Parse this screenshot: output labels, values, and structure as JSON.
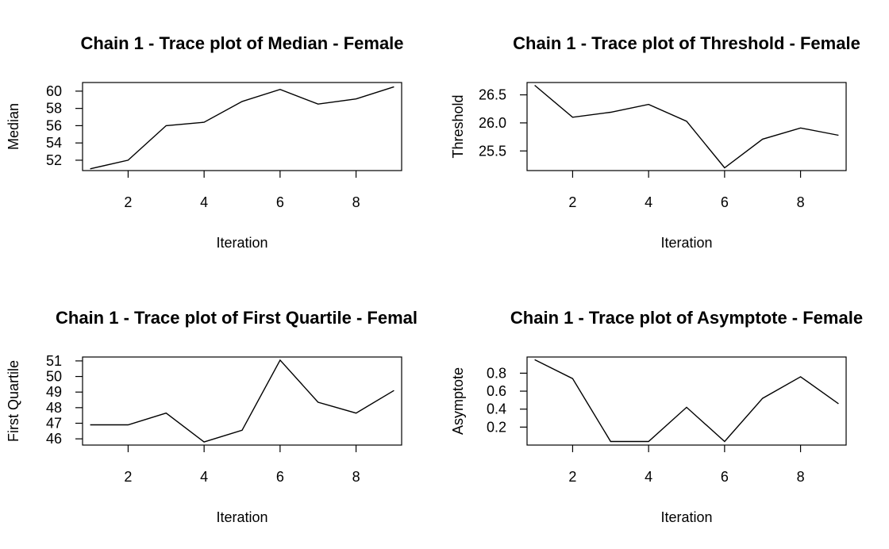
{
  "chart_data": [
    {
      "type": "line",
      "title": "Chain 1 - Trace plot of Median - Female",
      "xlabel": "Iteration",
      "ylabel": "Median",
      "x": [
        1,
        2,
        3,
        4,
        5,
        6,
        7,
        8,
        9
      ],
      "xticks": [
        2,
        4,
        6,
        8
      ],
      "xlim": [
        0.8,
        9.2
      ],
      "yticks": [
        52,
        54,
        56,
        58,
        60
      ],
      "ytick_labels": [
        "52",
        "54",
        "56",
        "58",
        "60"
      ],
      "ylim": [
        50.8,
        61.0
      ],
      "grid": false,
      "series": [
        {
          "values": [
            51.0,
            52.0,
            56.0,
            56.4,
            58.8,
            60.2,
            58.5,
            59.1,
            60.5
          ]
        }
      ]
    },
    {
      "type": "line",
      "title": "Chain 1 - Trace plot of Threshold - Female",
      "xlabel": "Iteration",
      "ylabel": "Threshold",
      "x": [
        1,
        2,
        3,
        4,
        5,
        6,
        7,
        8,
        9
      ],
      "xticks": [
        2,
        4,
        6,
        8
      ],
      "xlim": [
        0.8,
        9.2
      ],
      "yticks": [
        25.5,
        26.0,
        26.5
      ],
      "ytick_labels": [
        "25.5",
        "26.0",
        "26.5"
      ],
      "ylim": [
        25.15,
        26.72
      ],
      "grid": false,
      "series": [
        {
          "values": [
            26.67,
            26.1,
            26.19,
            26.33,
            26.03,
            25.2,
            25.71,
            25.91,
            25.78
          ]
        }
      ]
    },
    {
      "type": "line",
      "title": "Chain 1 - Trace plot of First Quartile - Femal",
      "xlabel": "Iteration",
      "ylabel": "First Quartile",
      "x": [
        1,
        2,
        3,
        4,
        5,
        6,
        7,
        8,
        9
      ],
      "xticks": [
        2,
        4,
        6,
        8
      ],
      "xlim": [
        0.8,
        9.2
      ],
      "yticks": [
        46,
        47,
        48,
        49,
        50,
        51
      ],
      "ytick_labels": [
        "46",
        "47",
        "48",
        "49",
        "50",
        "51"
      ],
      "ylim": [
        45.6,
        51.25
      ],
      "grid": false,
      "series": [
        {
          "values": [
            46.9,
            46.9,
            47.65,
            45.8,
            46.55,
            51.05,
            48.35,
            47.65,
            49.1
          ]
        }
      ]
    },
    {
      "type": "line",
      "title": "Chain 1 - Trace plot of Asymptote - Female",
      "xlabel": "Iteration",
      "ylabel": "Asymptote",
      "x": [
        1,
        2,
        3,
        4,
        5,
        6,
        7,
        8,
        9
      ],
      "xticks": [
        2,
        4,
        6,
        8
      ],
      "xlim": [
        0.8,
        9.2
      ],
      "yticks": [
        0.2,
        0.4,
        0.6,
        0.8
      ],
      "ytick_labels": [
        "0.2",
        "0.4",
        "0.6",
        "0.8"
      ],
      "ylim": [
        0.0,
        0.98
      ],
      "grid": false,
      "series": [
        {
          "values": [
            0.95,
            0.74,
            0.04,
            0.04,
            0.42,
            0.04,
            0.52,
            0.76,
            0.46
          ]
        }
      ]
    }
  ]
}
